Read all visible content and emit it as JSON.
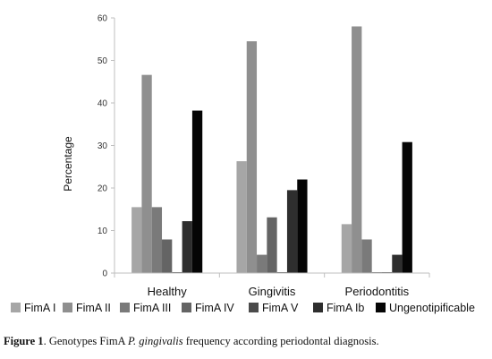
{
  "chart_data": {
    "type": "bar",
    "categories": [
      "Healthy",
      "Gingivitis",
      "Periodontitis"
    ],
    "series": [
      {
        "name": "FimA I",
        "color": "#a6a6a6",
        "values": [
          15.5,
          26.3,
          11.5
        ]
      },
      {
        "name": "FimA II",
        "color": "#8f8f8f",
        "values": [
          46.6,
          54.5,
          58.0
        ]
      },
      {
        "name": "FimA III",
        "color": "#7a7a7a",
        "values": [
          15.5,
          4.3,
          7.9
        ]
      },
      {
        "name": "FimA IV",
        "color": "#646464",
        "values": [
          7.9,
          13.1,
          0
        ]
      },
      {
        "name": "FimA V",
        "color": "#4b4b4b",
        "values": [
          0,
          0,
          0
        ]
      },
      {
        "name": "FimA Ib",
        "color": "#2e2e2e",
        "values": [
          12.2,
          19.5,
          4.3
        ]
      },
      {
        "name": "Ungenotipificable",
        "color": "#050505",
        "values": [
          38.2,
          22.0,
          30.8
        ]
      }
    ],
    "ylabel": "Percentage",
    "xlabel": "",
    "ylim": [
      0,
      60
    ],
    "yticks": [
      0,
      10,
      20,
      30,
      40,
      50,
      60
    ],
    "grid": false,
    "legend": "bottom"
  },
  "caption": {
    "label": "Figure 1",
    "text_before": ". Genotypes FimA ",
    "species": "P. gingivalis",
    "text_after": " frequency according periodontal diagnosis."
  }
}
